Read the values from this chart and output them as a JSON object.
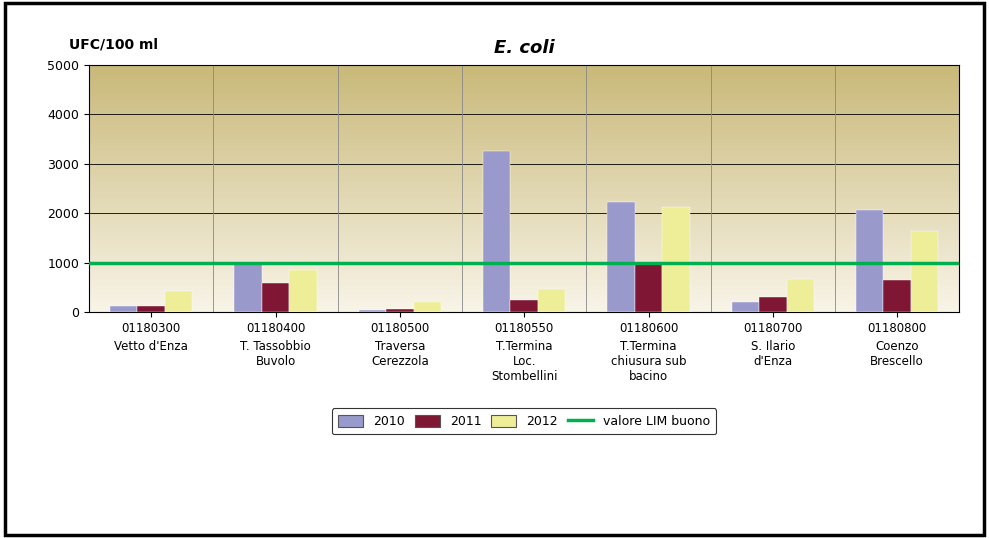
{
  "title": "E. coli",
  "ufc_label": "UFC/100 ml",
  "ylim": [
    0,
    5000
  ],
  "yticks": [
    0,
    1000,
    2000,
    3000,
    4000,
    5000
  ],
  "lim_value": 1000,
  "stations": [
    {
      "code": "01180300",
      "name": "Vetto d'Enza"
    },
    {
      "code": "01180400",
      "name": "T. Tassobbio\nBuvolo"
    },
    {
      "code": "01180500",
      "name": "Traversa\nCerezzola"
    },
    {
      "code": "01180550",
      "name": "T.Termina\nLoc.\nStombellini"
    },
    {
      "code": "01180600",
      "name": "T.Termina\nchiusura sub\nbacino"
    },
    {
      "code": "01180700",
      "name": "S. Ilario\nd'Enza"
    },
    {
      "code": "01180800",
      "name": "Coenzo\nBrescello"
    }
  ],
  "series": {
    "2010": [
      130,
      1000,
      40,
      3250,
      2230,
      200,
      2060
    ],
    "2011": [
      120,
      580,
      60,
      250,
      980,
      310,
      640
    ],
    "2012": [
      430,
      850,
      200,
      460,
      2120,
      660,
      1640
    ]
  },
  "bar_colors": {
    "2010": "#9999cc",
    "2011": "#7f1734",
    "2012": "#eeee99"
  },
  "lim_color": "#00b050",
  "background_top": "#c8b878",
  "background_bottom": "#f8f4e8",
  "legend_labels": [
    "2010",
    "2011",
    "2012",
    "valore LIM buono"
  ],
  "grid_color": "#000000",
  "separator_color": "#888888",
  "bar_width": 0.22,
  "outer_border_color": "#000000",
  "figure_bg": "#ffffff"
}
